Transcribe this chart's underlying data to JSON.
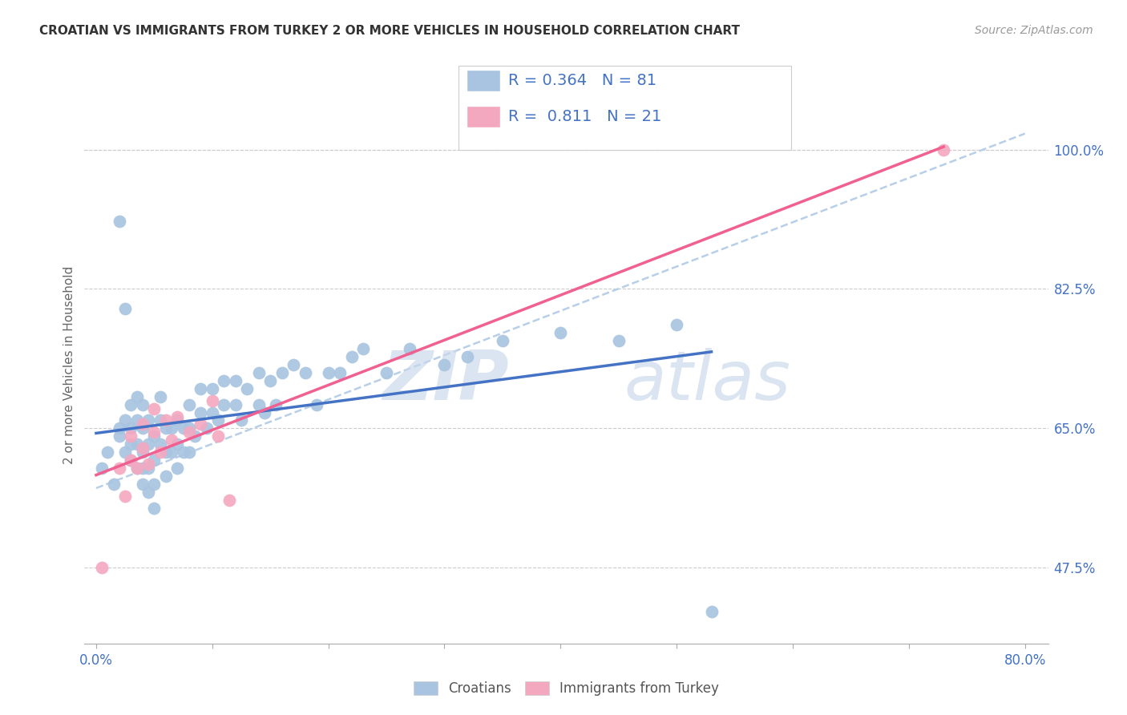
{
  "title": "CROATIAN VS IMMIGRANTS FROM TURKEY 2 OR MORE VEHICLES IN HOUSEHOLD CORRELATION CHART",
  "source": "Source: ZipAtlas.com",
  "ylabel": "2 or more Vehicles in Household",
  "xlim": [
    -0.01,
    0.82
  ],
  "ylim": [
    0.38,
    1.08
  ],
  "xtick_positions": [
    0.0,
    0.1,
    0.2,
    0.3,
    0.4,
    0.5,
    0.6,
    0.7,
    0.8
  ],
  "xtick_labels": [
    "0.0%",
    "",
    "",
    "",
    "",
    "",
    "",
    "",
    "80.0%"
  ],
  "ytick_labels": [
    "47.5%",
    "65.0%",
    "82.5%",
    "100.0%"
  ],
  "ytick_positions": [
    0.475,
    0.65,
    0.825,
    1.0
  ],
  "croatian_R": "0.364",
  "croatian_N": "81",
  "turkey_R": "0.811",
  "turkey_N": "21",
  "croatian_color": "#a8c4e0",
  "turkey_color": "#f4a8c0",
  "trendline_croatian_color": "#4472c4",
  "trendline_turkey_color": "#f06090",
  "dashed_line_color": "#b8cfe8",
  "watermark_zip": "ZIP",
  "watermark_atlas": "atlas",
  "croatian_x": [
    0.005,
    0.01,
    0.015,
    0.02,
    0.02,
    0.02,
    0.025,
    0.025,
    0.025,
    0.03,
    0.03,
    0.03,
    0.03,
    0.035,
    0.035,
    0.035,
    0.035,
    0.04,
    0.04,
    0.04,
    0.04,
    0.04,
    0.045,
    0.045,
    0.045,
    0.045,
    0.05,
    0.05,
    0.05,
    0.05,
    0.055,
    0.055,
    0.055,
    0.06,
    0.06,
    0.06,
    0.065,
    0.065,
    0.07,
    0.07,
    0.07,
    0.075,
    0.075,
    0.08,
    0.08,
    0.08,
    0.085,
    0.09,
    0.09,
    0.095,
    0.1,
    0.1,
    0.105,
    0.11,
    0.11,
    0.12,
    0.12,
    0.125,
    0.13,
    0.14,
    0.14,
    0.145,
    0.15,
    0.155,
    0.16,
    0.17,
    0.18,
    0.19,
    0.2,
    0.21,
    0.22,
    0.23,
    0.25,
    0.27,
    0.3,
    0.32,
    0.35,
    0.4,
    0.45,
    0.5,
    0.53
  ],
  "croatian_y": [
    0.6,
    0.62,
    0.58,
    0.64,
    0.91,
    0.65,
    0.62,
    0.66,
    0.8,
    0.61,
    0.63,
    0.65,
    0.68,
    0.6,
    0.63,
    0.66,
    0.69,
    0.58,
    0.6,
    0.62,
    0.65,
    0.68,
    0.57,
    0.6,
    0.63,
    0.66,
    0.55,
    0.58,
    0.61,
    0.64,
    0.63,
    0.66,
    0.69,
    0.59,
    0.62,
    0.65,
    0.62,
    0.65,
    0.6,
    0.63,
    0.66,
    0.62,
    0.65,
    0.62,
    0.65,
    0.68,
    0.64,
    0.67,
    0.7,
    0.65,
    0.67,
    0.7,
    0.66,
    0.68,
    0.71,
    0.68,
    0.71,
    0.66,
    0.7,
    0.68,
    0.72,
    0.67,
    0.71,
    0.68,
    0.72,
    0.73,
    0.72,
    0.68,
    0.72,
    0.72,
    0.74,
    0.75,
    0.72,
    0.75,
    0.73,
    0.74,
    0.76,
    0.77,
    0.76,
    0.78,
    0.42
  ],
  "turkey_x": [
    0.005,
    0.02,
    0.025,
    0.03,
    0.03,
    0.035,
    0.04,
    0.04,
    0.045,
    0.05,
    0.05,
    0.055,
    0.06,
    0.065,
    0.07,
    0.08,
    0.09,
    0.1,
    0.105,
    0.115,
    0.73
  ],
  "turkey_y": [
    0.475,
    0.6,
    0.565,
    0.61,
    0.64,
    0.6,
    0.625,
    0.655,
    0.605,
    0.645,
    0.675,
    0.62,
    0.66,
    0.635,
    0.665,
    0.645,
    0.655,
    0.685,
    0.64,
    0.56,
    1.0
  ]
}
